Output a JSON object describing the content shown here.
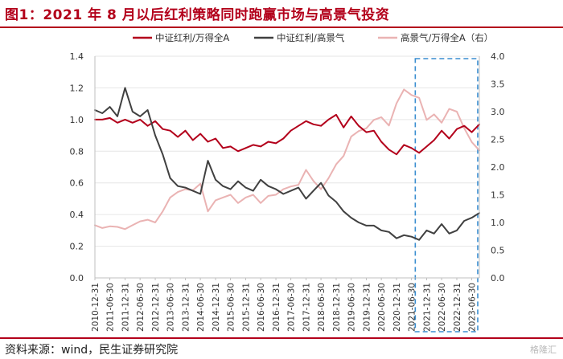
{
  "header": {
    "title": "图1：2021 年 8 月以后红利策略同时跑赢市场与高景气投资"
  },
  "footer": {
    "source": "资料来源：wind，民生证券研究院",
    "watermark": "格隆汇"
  },
  "chart_data": {
    "type": "line",
    "title": "",
    "xlabel": "",
    "ylabel": "",
    "ylim": [
      0,
      1.4
    ],
    "y2lim": [
      0,
      4.0
    ],
    "yticks": [
      "0.0",
      "0.2",
      "0.4",
      "0.6",
      "0.8",
      "1.0",
      "1.2",
      "1.4"
    ],
    "y2ticks": [
      "0.0",
      "0.5",
      "1.0",
      "1.5",
      "2.0",
      "2.5",
      "3.0",
      "3.5",
      "4.0"
    ],
    "x_start": "2010-12-31",
    "x_end": "2023-09-30",
    "xticks": [
      "2010-12-31",
      "2011-06-30",
      "2011-12-31",
      "2012-06-30",
      "2012-12-31",
      "2013-06-30",
      "2013-12-31",
      "2014-06-30",
      "2014-12-31",
      "2015-06-30",
      "2015-12-31",
      "2016-06-30",
      "2016-12-31",
      "2017-06-30",
      "2017-12-31",
      "2018-06-30",
      "2018-12-31",
      "2019-06-30",
      "2019-12-31",
      "2020-06-30",
      "2020-12-31",
      "2021-06-30",
      "2021-12-31",
      "2022-06-30",
      "2022-12-31",
      "2023-06-30"
    ],
    "legend_position": "top",
    "highlight": {
      "start": "2021-08-15",
      "end": "2023-09-30"
    },
    "series": [
      {
        "name": "中证红利/万得全A",
        "axis": "left",
        "color": "#b3001b",
        "x": [
          "2010-12-31",
          "2011-03-31",
          "2011-06-30",
          "2011-09-30",
          "2011-12-31",
          "2012-03-31",
          "2012-06-30",
          "2012-09-30",
          "2012-12-31",
          "2013-03-31",
          "2013-06-30",
          "2013-09-30",
          "2013-12-31",
          "2014-03-31",
          "2014-06-30",
          "2014-09-30",
          "2014-12-31",
          "2015-03-31",
          "2015-06-30",
          "2015-09-30",
          "2015-12-31",
          "2016-03-31",
          "2016-06-30",
          "2016-09-30",
          "2016-12-31",
          "2017-03-31",
          "2017-06-30",
          "2017-09-30",
          "2017-12-31",
          "2018-03-31",
          "2018-06-30",
          "2018-09-30",
          "2018-12-31",
          "2019-03-31",
          "2019-06-30",
          "2019-09-30",
          "2019-12-31",
          "2020-03-31",
          "2020-06-30",
          "2020-09-30",
          "2020-12-31",
          "2021-03-31",
          "2021-06-30",
          "2021-09-30",
          "2021-12-31",
          "2022-03-31",
          "2022-06-30",
          "2022-09-30",
          "2022-12-31",
          "2023-03-31",
          "2023-06-30",
          "2023-09-30"
        ],
        "values": [
          1.0,
          1.0,
          1.01,
          0.98,
          1.0,
          0.98,
          1.0,
          0.96,
          0.99,
          0.94,
          0.93,
          0.89,
          0.93,
          0.87,
          0.91,
          0.86,
          0.88,
          0.82,
          0.83,
          0.8,
          0.82,
          0.84,
          0.83,
          0.86,
          0.85,
          0.88,
          0.93,
          0.96,
          0.99,
          0.97,
          0.96,
          1.0,
          1.03,
          0.95,
          1.02,
          0.96,
          0.92,
          0.93,
          0.86,
          0.81,
          0.78,
          0.84,
          0.82,
          0.79,
          0.83,
          0.87,
          0.93,
          0.88,
          0.94,
          0.96,
          0.92,
          0.97
        ]
      },
      {
        "name": "中证红利/高景气",
        "axis": "left",
        "color": "#404040",
        "x": [
          "2010-12-31",
          "2011-03-31",
          "2011-06-30",
          "2011-09-30",
          "2011-12-31",
          "2012-03-31",
          "2012-06-30",
          "2012-09-30",
          "2012-12-31",
          "2013-03-31",
          "2013-06-30",
          "2013-09-30",
          "2013-12-31",
          "2014-03-31",
          "2014-06-30",
          "2014-09-30",
          "2014-12-31",
          "2015-03-31",
          "2015-06-30",
          "2015-09-30",
          "2015-12-31",
          "2016-03-31",
          "2016-06-30",
          "2016-09-30",
          "2016-12-31",
          "2017-03-31",
          "2017-06-30",
          "2017-09-30",
          "2017-12-31",
          "2018-03-31",
          "2018-06-30",
          "2018-09-30",
          "2018-12-31",
          "2019-03-31",
          "2019-06-30",
          "2019-09-30",
          "2019-12-31",
          "2020-03-31",
          "2020-06-30",
          "2020-09-30",
          "2020-12-31",
          "2021-03-31",
          "2021-06-30",
          "2021-09-30",
          "2021-12-31",
          "2022-03-31",
          "2022-06-30",
          "2022-09-30",
          "2022-12-31",
          "2023-03-31",
          "2023-06-30",
          "2023-09-30"
        ],
        "values": [
          1.06,
          1.04,
          1.08,
          1.02,
          1.2,
          1.05,
          1.02,
          1.06,
          0.9,
          0.78,
          0.63,
          0.58,
          0.57,
          0.55,
          0.53,
          0.74,
          0.62,
          0.58,
          0.56,
          0.61,
          0.57,
          0.55,
          0.62,
          0.58,
          0.56,
          0.53,
          0.55,
          0.57,
          0.5,
          0.55,
          0.6,
          0.52,
          0.48,
          0.42,
          0.38,
          0.35,
          0.33,
          0.33,
          0.3,
          0.29,
          0.25,
          0.27,
          0.26,
          0.24,
          0.3,
          0.28,
          0.34,
          0.28,
          0.3,
          0.36,
          0.38,
          0.41
        ]
      },
      {
        "name": "高景气/万得全A（右）",
        "axis": "right",
        "color": "#eab3b3",
        "x": [
          "2010-12-31",
          "2011-03-31",
          "2011-06-30",
          "2011-09-30",
          "2011-12-31",
          "2012-03-31",
          "2012-06-30",
          "2012-09-30",
          "2012-12-31",
          "2013-03-31",
          "2013-06-30",
          "2013-09-30",
          "2013-12-31",
          "2014-03-31",
          "2014-06-30",
          "2014-09-30",
          "2014-12-31",
          "2015-03-31",
          "2015-06-30",
          "2015-09-30",
          "2015-12-31",
          "2016-03-31",
          "2016-06-30",
          "2016-09-30",
          "2016-12-31",
          "2017-03-31",
          "2017-06-30",
          "2017-09-30",
          "2017-12-31",
          "2018-03-31",
          "2018-06-30",
          "2018-09-30",
          "2018-12-31",
          "2019-03-31",
          "2019-06-30",
          "2019-09-30",
          "2019-12-31",
          "2020-03-31",
          "2020-06-30",
          "2020-09-30",
          "2020-12-31",
          "2021-03-31",
          "2021-06-30",
          "2021-09-30",
          "2021-12-31",
          "2022-03-31",
          "2022-06-30",
          "2022-09-30",
          "2022-12-31",
          "2023-03-31",
          "2023-06-30",
          "2023-09-30"
        ],
        "values": [
          0.95,
          0.9,
          0.93,
          0.92,
          0.88,
          0.95,
          1.02,
          1.05,
          1.0,
          1.2,
          1.45,
          1.55,
          1.6,
          1.58,
          1.7,
          1.2,
          1.4,
          1.45,
          1.5,
          1.35,
          1.45,
          1.5,
          1.35,
          1.48,
          1.5,
          1.6,
          1.65,
          1.68,
          1.95,
          1.75,
          1.6,
          1.8,
          2.05,
          2.2,
          2.55,
          2.65,
          2.7,
          2.85,
          2.9,
          2.75,
          3.15,
          3.4,
          3.3,
          3.25,
          2.85,
          2.95,
          2.8,
          3.05,
          3.0,
          2.7,
          2.45,
          2.3
        ]
      }
    ]
  }
}
